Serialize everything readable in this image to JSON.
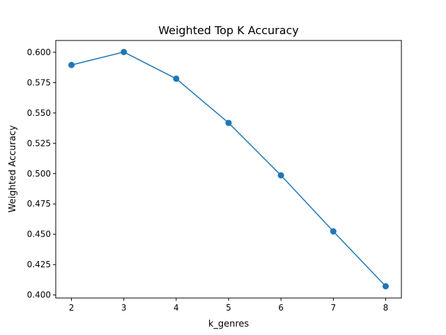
{
  "chart_data": {
    "type": "line",
    "title": "Weighted Top K Accuracy",
    "xlabel": "k_genres",
    "ylabel": "Weighted Accuracy",
    "x": [
      2,
      3,
      4,
      5,
      6,
      7,
      8
    ],
    "series": [
      {
        "values": [
          0.5895,
          0.6002,
          0.5782,
          0.5418,
          0.4986,
          0.4524,
          0.4072
        ],
        "color": "#1f77b4",
        "marker": "circle"
      }
    ],
    "xticks": [
      "2",
      "3",
      "4",
      "5",
      "6",
      "7",
      "8"
    ],
    "yticks": [
      "0.400",
      "0.425",
      "0.450",
      "0.475",
      "0.500",
      "0.525",
      "0.550",
      "0.575",
      "0.600"
    ],
    "xlim": [
      1.7,
      8.3
    ],
    "ylim": [
      0.3975,
      0.6097
    ],
    "grid": false,
    "legend": "none"
  }
}
